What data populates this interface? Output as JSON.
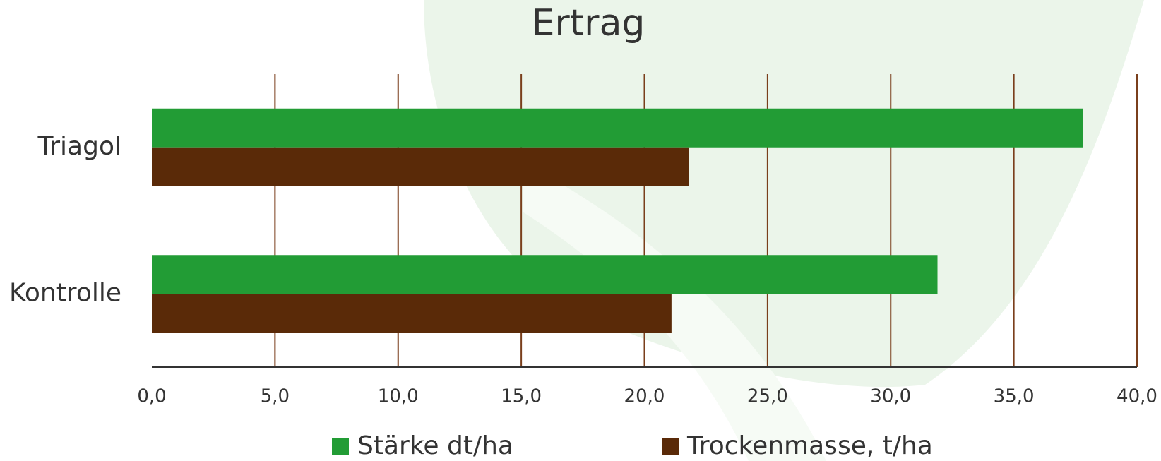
{
  "chart_data": {
    "type": "hbar",
    "title": "Ertrag",
    "categories": [
      "Triagol",
      "Kontrolle"
    ],
    "series": [
      {
        "name": "Stärke dt/ha",
        "color": "#229c35",
        "values": [
          37.8,
          31.9
        ]
      },
      {
        "name": "Trockenmasse, t/ha",
        "color": "#5a2a08",
        "values": [
          21.8,
          21.1
        ]
      }
    ],
    "xlim": [
      0,
      40
    ],
    "xticks": [
      {
        "value": 0,
        "label": "0,0"
      },
      {
        "value": 5,
        "label": "5,0"
      },
      {
        "value": 10,
        "label": "10,0"
      },
      {
        "value": 15,
        "label": "15,0"
      },
      {
        "value": 20,
        "label": "20,0"
      },
      {
        "value": 25,
        "label": "25,0"
      },
      {
        "value": 30,
        "label": "30,0"
      },
      {
        "value": 35,
        "label": "35,0"
      },
      {
        "value": 40,
        "label": "40,0"
      }
    ],
    "grid": true,
    "grid_color": "#7a3f1c",
    "legend": "bottom"
  }
}
